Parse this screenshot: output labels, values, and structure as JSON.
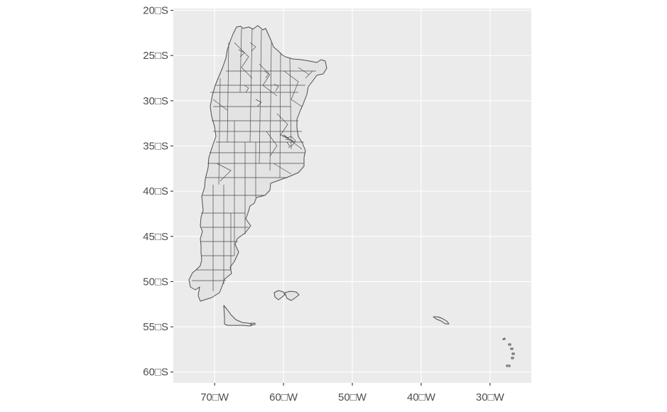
{
  "map": {
    "projection": "longitude-latitude",
    "panel_background": "#ebebeb",
    "grid_color": "#ffffff",
    "outline_color": "#4d4d4d",
    "fill_color": "#e3e3e3",
    "xlim": [
      -76,
      -24
    ],
    "ylim": [
      -61.2,
      -19.8
    ],
    "x_ticks": [
      {
        "value": -70,
        "label": "70□W"
      },
      {
        "value": -60,
        "label": "60□W"
      },
      {
        "value": -50,
        "label": "50□W"
      },
      {
        "value": -40,
        "label": "40□W"
      },
      {
        "value": -30,
        "label": "30□W"
      }
    ],
    "y_ticks": [
      {
        "value": -20,
        "label": "20□S"
      },
      {
        "value": -25,
        "label": "25□S"
      },
      {
        "value": -30,
        "label": "30□S"
      },
      {
        "value": -35,
        "label": "35□S"
      },
      {
        "value": -40,
        "label": "40□S"
      },
      {
        "value": -45,
        "label": "45□S"
      },
      {
        "value": -50,
        "label": "50□S"
      },
      {
        "value": -55,
        "label": "55□S"
      },
      {
        "value": -60,
        "label": "60□S"
      }
    ],
    "features": [
      "Argentina mainland (administrative divisions)",
      "Tierra del Fuego",
      "Falkland Islands",
      "South Georgia",
      "South Sandwich Islands"
    ]
  }
}
